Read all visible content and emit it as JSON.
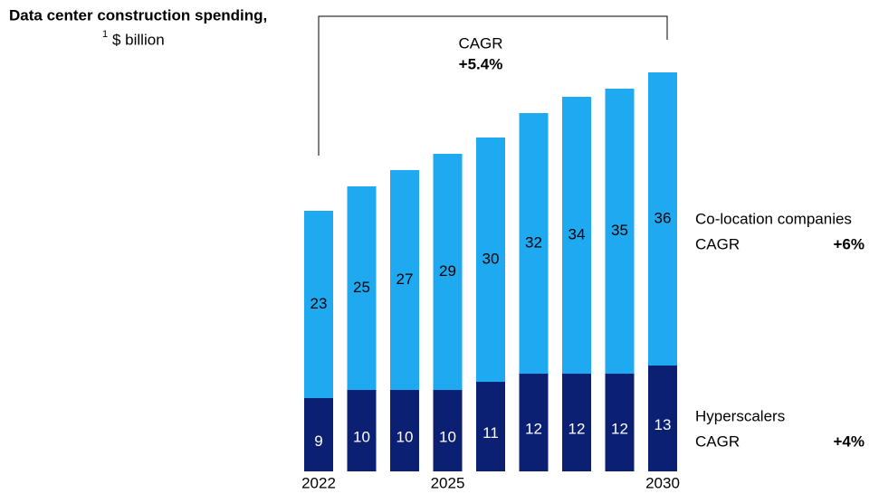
{
  "chart_data": {
    "type": "stacked-bar",
    "title": "Data center construction spending,",
    "title_footnote": "1",
    "unit": "$ billion",
    "annotation": {
      "label": "CAGR",
      "value": "+5.4%"
    },
    "categories": [
      "2022",
      null,
      null,
      "2025",
      null,
      null,
      null,
      null,
      "2030"
    ],
    "series": [
      {
        "name": "Hyperscalers",
        "color": "#0b1f73",
        "cagr_label": "CAGR",
        "cagr": "+4%",
        "values": [
          9,
          10,
          10,
          10,
          11,
          12,
          12,
          12,
          13
        ]
      },
      {
        "name": "Co-location companies",
        "color": "#1fa9f0",
        "cagr_label": "CAGR",
        "cagr": "+6%",
        "values": [
          23,
          25,
          27,
          29,
          30,
          32,
          34,
          35,
          36
        ]
      }
    ]
  }
}
